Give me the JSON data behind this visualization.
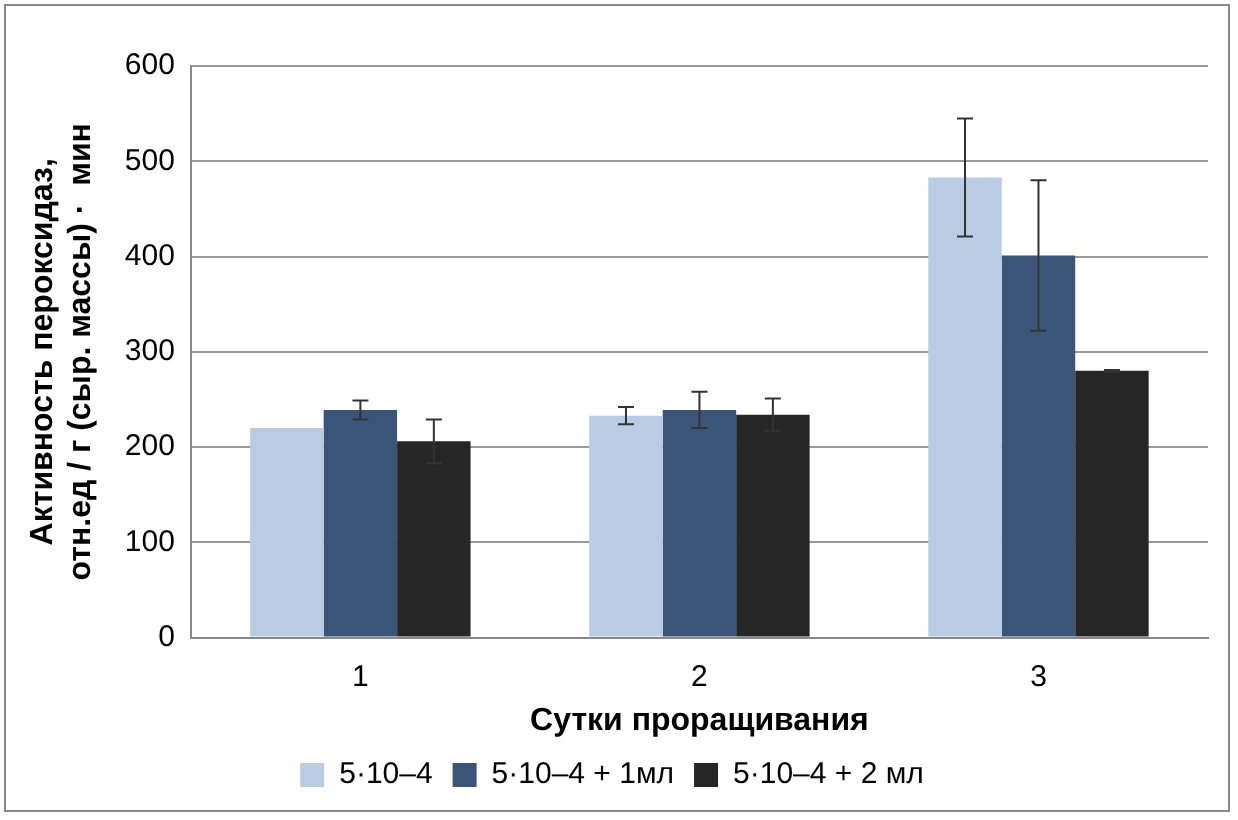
{
  "chart_data": {
    "type": "bar",
    "xlabel": "Сутки проращивания",
    "ylabel": "Активность пероксидаз, отн.ед / г (сыр. массы) ·  мин",
    "categories": [
      "1",
      "2",
      "3"
    ],
    "series": [
      {
        "name": "5·10–4",
        "color": "#b9cce4",
        "values": [
          220,
          233,
          483
        ],
        "errors": [
          null,
          9,
          62
        ]
      },
      {
        "name": "5·10–4 + 1мл",
        "color": "#3b5578",
        "values": [
          239,
          239,
          401
        ],
        "errors": [
          10,
          19,
          79
        ]
      },
      {
        "name": "5·10–4 + 2 мл",
        "color": "#262626",
        "values": [
          206,
          234,
          280
        ],
        "errors": [
          23,
          17,
          1
        ]
      }
    ],
    "ylim": [
      0,
      600
    ],
    "yticks": [
      0,
      100,
      200,
      300,
      400,
      500,
      600
    ],
    "grid": "y",
    "legend": "bottom"
  }
}
